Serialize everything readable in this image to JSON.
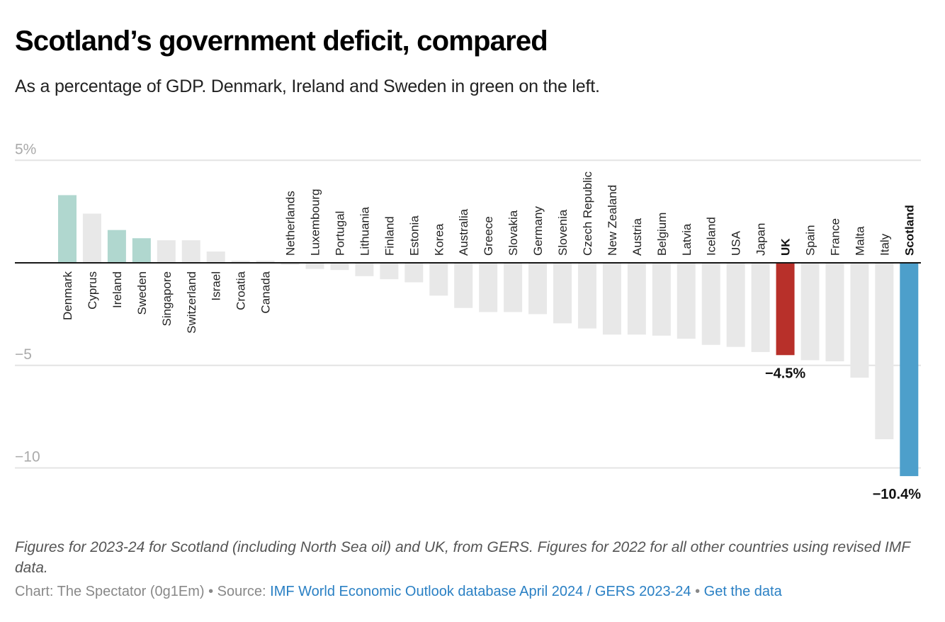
{
  "header": {
    "title": "Scotland’s government deficit, compared",
    "subtitle": "As a percentage of GDP. Denmark, Ireland and Sweden in green on the left."
  },
  "footer": {
    "notes": "Figures for 2023-24 for Scotland (including North Sea oil) and UK, from GERS. Figures for 2022 for all other countries using revised IMF data.",
    "credit_prefix": "Chart: The Spectator (0g1Em) • Source: ",
    "source_link": "IMF World Economic Outlook database April 2024 / GERS 2023-24",
    "separator": " • ",
    "data_link": "Get the data"
  },
  "colors": {
    "default": "#e8e8e8",
    "highlight_green": "#b0d7cf",
    "uk": "#b8302a",
    "scotland": "#4d9fcb",
    "axis": "#181818",
    "grid": "#e4e4e4"
  },
  "chart_data": {
    "type": "bar",
    "title": "Scotland’s government deficit, compared",
    "subtitle": "As a percentage of GDP. Denmark, Ireland and Sweden in green on the left.",
    "xlabel": "",
    "ylabel": "",
    "ylim": [
      -10.4,
      5
    ],
    "yticks": [
      5,
      -5,
      -10
    ],
    "ytick_labels": [
      "5%",
      "−5",
      "−10"
    ],
    "grid": true,
    "legend": "none",
    "categories": [
      "Denmark",
      "Cyprus",
      "Ireland",
      "Sweden",
      "Singapore",
      "Switzerland",
      "Israel",
      "Croatia",
      "Canada",
      "Netherlands",
      "Luxembourg",
      "Portugal",
      "Lithuania",
      "Finland",
      "Estonia",
      "Korea",
      "Australia",
      "Greece",
      "Slovakia",
      "Germany",
      "Slovenia",
      "Czech Republic",
      "New Zealand",
      "Austria",
      "Belgium",
      "Latvia",
      "Iceland",
      "USA",
      "Japan",
      "UK",
      "Spain",
      "France",
      "Malta",
      "Italy",
      "Scotland"
    ],
    "values": [
      3.3,
      2.4,
      1.6,
      1.2,
      1.1,
      1.1,
      0.55,
      0.1,
      0.1,
      -0.1,
      -0.3,
      -0.35,
      -0.65,
      -0.8,
      -0.95,
      -1.6,
      -2.2,
      -2.4,
      -2.4,
      -2.5,
      -2.95,
      -3.2,
      -3.5,
      -3.5,
      -3.55,
      -3.7,
      -4.0,
      -4.1,
      -4.35,
      -4.5,
      -4.75,
      -4.8,
      -5.6,
      -8.6,
      -10.4
    ],
    "highlight": {
      "Denmark": "highlight_green",
      "Ireland": "highlight_green",
      "Sweden": "highlight_green",
      "UK": "uk",
      "Scotland": "scotland"
    },
    "bold_labels": [
      "UK",
      "Scotland"
    ],
    "annotations": [
      {
        "category": "UK",
        "text": "−4.5%"
      },
      {
        "category": "Scotland",
        "text": "−10.4%"
      }
    ]
  }
}
